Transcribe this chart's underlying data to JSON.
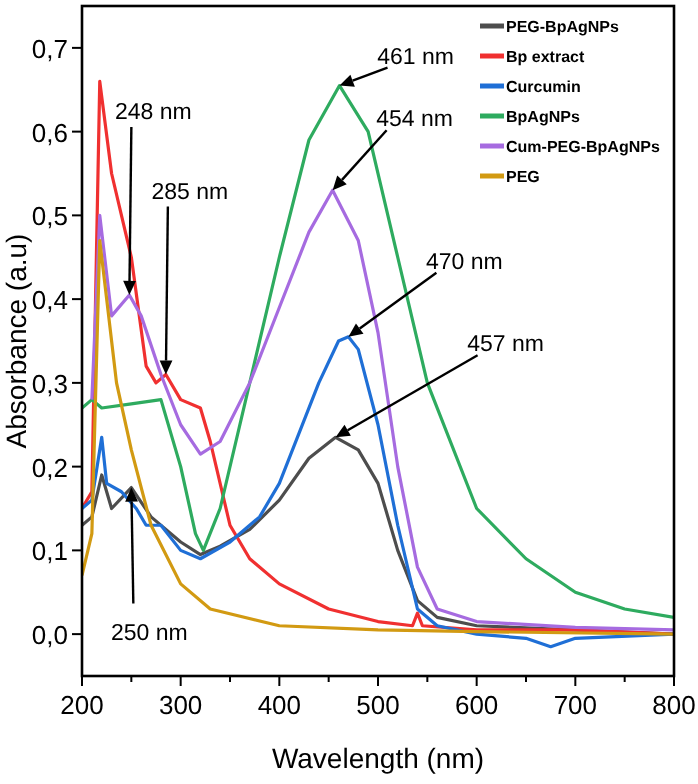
{
  "chart_data": {
    "type": "line",
    "xlabel": "Wavelength (nm)",
    "ylabel": "Absorbance (a.u)",
    "xlim": [
      200,
      800
    ],
    "ylim": [
      -0.05,
      0.75
    ],
    "xticks": [
      200,
      {
        "value": 250,
        "label": null
      },
      300,
      {
        "value": 350,
        "label": null
      },
      400,
      {
        "value": 450,
        "label": null
      },
      500,
      {
        "value": 550,
        "label": null
      },
      600,
      {
        "value": 650,
        "label": null
      },
      700,
      {
        "value": 750,
        "label": null
      },
      800
    ],
    "yticks": [
      {
        "value": 0,
        "label": "0,0"
      },
      {
        "value": 0.1,
        "label": "0,1"
      },
      {
        "value": 0.2,
        "label": "0,2"
      },
      {
        "value": 0.3,
        "label": "0,3"
      },
      {
        "value": 0.4,
        "label": "0,4"
      },
      {
        "value": 0.5,
        "label": "0,5"
      },
      {
        "value": 0.6,
        "label": "0,6"
      },
      {
        "value": 0.7,
        "label": "0,7"
      }
    ],
    "grid": false,
    "legend": "top right",
    "line_style": "solid",
    "marker": "none",
    "series": [
      {
        "name": "PEG-BpAgNPs",
        "color": "#4d4d4d",
        "x": [
          200,
          210,
          220,
          230,
          250,
          270,
          300,
          320,
          340,
          370,
          400,
          430,
          457,
          480,
          500,
          520,
          540,
          560,
          600,
          800
        ],
        "values": [
          0.13,
          0.14,
          0.19,
          0.15,
          0.175,
          0.14,
          0.11,
          0.095,
          0.105,
          0.125,
          0.16,
          0.21,
          0.235,
          0.22,
          0.18,
          0.1,
          0.04,
          0.02,
          0.01,
          0
        ]
      },
      {
        "name": "Bp extract",
        "color": "#f03030",
        "x": [
          200,
          210,
          218,
          230,
          250,
          265,
          275,
          285,
          300,
          320,
          330,
          350,
          370,
          400,
          450,
          500,
          535,
          540,
          545,
          600,
          700,
          800
        ],
        "values": [
          0.15,
          0.17,
          0.66,
          0.55,
          0.45,
          0.32,
          0.3,
          0.31,
          0.28,
          0.27,
          0.23,
          0.13,
          0.09,
          0.06,
          0.03,
          0.015,
          0.01,
          0.025,
          0.01,
          0.005,
          0.005,
          0
        ]
      },
      {
        "name": "Curcumin",
        "color": "#1f6fd6",
        "x": [
          200,
          210,
          220,
          225,
          240,
          255,
          265,
          280,
          300,
          320,
          350,
          380,
          400,
          420,
          440,
          460,
          470,
          480,
          500,
          520,
          540,
          560,
          600,
          650,
          675,
          700,
          800
        ],
        "values": [
          0.15,
          0.16,
          0.235,
          0.18,
          0.17,
          0.15,
          0.13,
          0.13,
          0.1,
          0.09,
          0.11,
          0.14,
          0.18,
          0.24,
          0.3,
          0.35,
          0.355,
          0.34,
          0.25,
          0.13,
          0.03,
          0.01,
          0,
          -0.005,
          -0.015,
          -0.005,
          0
        ]
      },
      {
        "name": "BpAgNPs",
        "color": "#2eab5f",
        "x": [
          200,
          210,
          220,
          250,
          280,
          300,
          315,
          323,
          340,
          370,
          400,
          430,
          461,
          490,
          520,
          550,
          600,
          650,
          700,
          750,
          800
        ],
        "values": [
          0.27,
          0.28,
          0.27,
          0.275,
          0.28,
          0.2,
          0.12,
          0.1,
          0.15,
          0.3,
          0.45,
          0.59,
          0.655,
          0.6,
          0.45,
          0.3,
          0.15,
          0.09,
          0.05,
          0.03,
          0.02
        ]
      },
      {
        "name": "Cum-PEG-BpAgNPs",
        "color": "#a66be0",
        "x": [
          210,
          218,
          230,
          248,
          260,
          280,
          300,
          320,
          340,
          370,
          400,
          430,
          454,
          480,
          500,
          520,
          540,
          560,
          600,
          700,
          800
        ],
        "values": [
          0.28,
          0.5,
          0.38,
          0.405,
          0.38,
          0.31,
          0.25,
          0.215,
          0.23,
          0.3,
          0.39,
          0.48,
          0.53,
          0.47,
          0.36,
          0.2,
          0.08,
          0.03,
          0.015,
          0.008,
          0.005
        ]
      },
      {
        "name": "PEG",
        "color": "#d29a12",
        "x": [
          200,
          210,
          218,
          225,
          235,
          250,
          270,
          300,
          330,
          400,
          500,
          600,
          800
        ],
        "values": [
          0.07,
          0.12,
          0.47,
          0.4,
          0.3,
          0.22,
          0.13,
          0.06,
          0.03,
          0.01,
          0.005,
          0.003,
          0
        ]
      }
    ],
    "annotations": [
      {
        "text": "461 nm",
        "x": 461,
        "y": 0.655
      },
      {
        "text": "454 nm",
        "x": 454,
        "y": 0.53
      },
      {
        "text": "470 nm",
        "x": 470,
        "y": 0.355
      },
      {
        "text": "457 nm",
        "x": 457,
        "y": 0.235
      },
      {
        "text": "248 nm",
        "x": 248,
        "y": 0.405
      },
      {
        "text": "285 nm",
        "x": 285,
        "y": 0.31
      },
      {
        "text": "250 nm",
        "x": 250,
        "y": 0.175
      }
    ]
  }
}
